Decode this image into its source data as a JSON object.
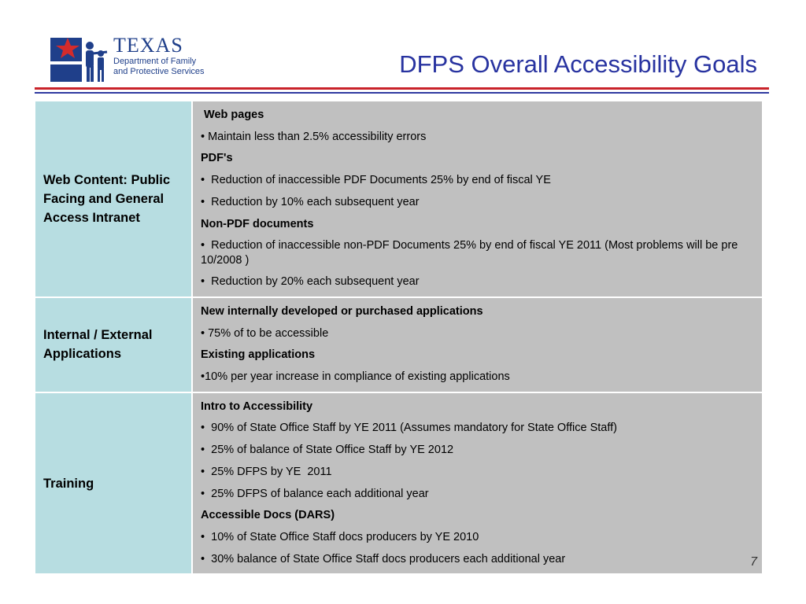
{
  "logo": {
    "name": "TEXAS",
    "line1": "Department of Family",
    "line2": "and Protective Services"
  },
  "title": "DFPS Overall Accessibility Goals",
  "rows": [
    {
      "label": "Web Content: Public Facing and General Access Intranet",
      "lines": [
        {
          "text": " Web pages",
          "bold": true
        },
        {
          "text": "• Maintain less than 2.5% accessibility errors"
        },
        {
          "text": "PDF's",
          "bold": true
        },
        {
          "text": "•  Reduction of inaccessible PDF Documents 25% by end of fiscal YE"
        },
        {
          "text": "•  Reduction by 10% each subsequent year"
        },
        {
          "text": "Non-PDF documents",
          "bold": true
        },
        {
          "text": "•  Reduction of inaccessible non-PDF Documents 25% by end of fiscal YE 2011 (Most problems will be pre 10/2008 )"
        },
        {
          "text": "•  Reduction by 20% each subsequent year"
        }
      ]
    },
    {
      "label": "Internal / External Applications",
      "lines": [
        {
          "text": "New internally developed or purchased applications",
          "bold": true
        },
        {
          "text": "• 75% of to be accessible"
        },
        {
          "text": "Existing applications",
          "bold": true
        },
        {
          "text": "•10% per year increase in compliance of existing applications"
        }
      ]
    },
    {
      "label": "Training",
      "lines": [
        {
          "text": "Intro to Accessibility",
          "bold": true
        },
        {
          "text": "•  90% of State Office Staff by YE 2011 (Assumes mandatory for State Office Staff)"
        },
        {
          "text": "•  25% of balance of State Office Staff by YE 2012"
        },
        {
          "text": "•  25% DFPS by YE  2011"
        },
        {
          "text": "•  25% DFPS of balance each additional year"
        },
        {
          "text": "Accessible Docs (DARS)",
          "bold": true
        },
        {
          "text": "•  10% of State Office Staff docs producers by YE 2010"
        },
        {
          "text": "•  30% balance of State Office Staff docs producers each additional year"
        }
      ]
    }
  ],
  "page_number": "7",
  "colors": {
    "title": "#2833a0",
    "rule_red": "#c9232a",
    "rule_blue": "#2f3aa0",
    "label_cell": "#b7dde1",
    "content_cell": "#c0c0c0"
  }
}
